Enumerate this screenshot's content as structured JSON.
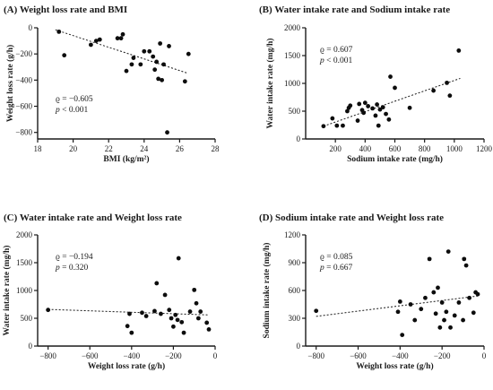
{
  "chart_data": [
    {
      "type": "scatter",
      "title": "(A) Weight loss rate and BMI",
      "xlabel": "BMI (kg/m²)",
      "ylabel": "Weight loss rate (g/h)",
      "xlim": [
        18,
        28
      ],
      "ylim": [
        -850,
        0
      ],
      "xticks": [
        18,
        20,
        22,
        24,
        26,
        28
      ],
      "yticks": [
        -800,
        -600,
        -400,
        -200,
        0
      ],
      "stats": {
        "rho": "ϱ = −0.605",
        "p": "p < 0.001"
      },
      "trendline": {
        "x": [
          19.0,
          26.4
        ],
        "y": [
          -15,
          -345
        ]
      },
      "points": [
        {
          "x": 19.2,
          "y": -30
        },
        {
          "x": 19.5,
          "y": -210
        },
        {
          "x": 21.0,
          "y": -130
        },
        {
          "x": 21.3,
          "y": -100
        },
        {
          "x": 21.5,
          "y": -90
        },
        {
          "x": 22.5,
          "y": -80
        },
        {
          "x": 22.7,
          "y": -80
        },
        {
          "x": 22.8,
          "y": -50
        },
        {
          "x": 23.0,
          "y": -330
        },
        {
          "x": 23.3,
          "y": -280
        },
        {
          "x": 23.4,
          "y": -230
        },
        {
          "x": 23.8,
          "y": -280
        },
        {
          "x": 24.0,
          "y": -180
        },
        {
          "x": 24.3,
          "y": -180
        },
        {
          "x": 24.5,
          "y": -220
        },
        {
          "x": 24.6,
          "y": -320
        },
        {
          "x": 24.7,
          "y": -260
        },
        {
          "x": 24.8,
          "y": -390
        },
        {
          "x": 24.9,
          "y": -120
        },
        {
          "x": 25.0,
          "y": -400
        },
        {
          "x": 25.1,
          "y": -280
        },
        {
          "x": 25.3,
          "y": -800
        },
        {
          "x": 25.4,
          "y": -140
        },
        {
          "x": 26.3,
          "y": -410
        },
        {
          "x": 26.5,
          "y": -200
        }
      ]
    },
    {
      "type": "scatter",
      "title": "(B) Water intake rate and Sodium intake rate",
      "xlabel": "Sodium intake rate (mg/h)",
      "ylabel": "Water intake rate (mg/h)",
      "xlim": [
        0,
        1200
      ],
      "ylim": [
        0,
        2000
      ],
      "xticks": [
        200,
        400,
        600,
        800,
        1000,
        1200
      ],
      "yticks": [
        0,
        500,
        1000,
        1500,
        2000
      ],
      "stats": {
        "rho": "ϱ = 0.607",
        "p": "p < 0.001"
      },
      "trendline": {
        "x": [
          120,
          1040
        ],
        "y": [
          230,
          1090
        ]
      },
      "points": [
        {
          "x": 120,
          "y": 230
        },
        {
          "x": 180,
          "y": 370
        },
        {
          "x": 210,
          "y": 240
        },
        {
          "x": 250,
          "y": 240
        },
        {
          "x": 280,
          "y": 500
        },
        {
          "x": 290,
          "y": 560
        },
        {
          "x": 300,
          "y": 600
        },
        {
          "x": 350,
          "y": 330
        },
        {
          "x": 360,
          "y": 630
        },
        {
          "x": 380,
          "y": 520
        },
        {
          "x": 390,
          "y": 470
        },
        {
          "x": 400,
          "y": 650
        },
        {
          "x": 420,
          "y": 590
        },
        {
          "x": 450,
          "y": 550
        },
        {
          "x": 470,
          "y": 420
        },
        {
          "x": 480,
          "y": 620
        },
        {
          "x": 490,
          "y": 240
        },
        {
          "x": 500,
          "y": 530
        },
        {
          "x": 520,
          "y": 570
        },
        {
          "x": 540,
          "y": 450
        },
        {
          "x": 560,
          "y": 350
        },
        {
          "x": 570,
          "y": 1120
        },
        {
          "x": 600,
          "y": 920
        },
        {
          "x": 700,
          "y": 560
        },
        {
          "x": 860,
          "y": 870
        },
        {
          "x": 950,
          "y": 1010
        },
        {
          "x": 970,
          "y": 780
        },
        {
          "x": 1030,
          "y": 1590
        }
      ]
    },
    {
      "type": "scatter",
      "title": "(C) Water intake rate and Weight loss rate",
      "xlabel": "Weight loss rate (g/h)",
      "ylabel": "Water intake rate (mg/h)",
      "xlim": [
        -850,
        0
      ],
      "ylim": [
        0,
        2000
      ],
      "xticks": [
        -800,
        -600,
        -400,
        -200,
        0
      ],
      "yticks": [
        0,
        500,
        1000,
        1500,
        2000
      ],
      "stats": {
        "rho": "ϱ = −0.194",
        "p": "p = 0.320"
      },
      "trendline": {
        "x": [
          -800,
          -30
        ],
        "y": [
          660,
          560
        ]
      },
      "points": [
        {
          "x": -800,
          "y": 650
        },
        {
          "x": -420,
          "y": 360
        },
        {
          "x": -410,
          "y": 580
        },
        {
          "x": -400,
          "y": 240
        },
        {
          "x": -350,
          "y": 600
        },
        {
          "x": -330,
          "y": 540
        },
        {
          "x": -290,
          "y": 630
        },
        {
          "x": -280,
          "y": 1130
        },
        {
          "x": -260,
          "y": 580
        },
        {
          "x": -240,
          "y": 920
        },
        {
          "x": -220,
          "y": 650
        },
        {
          "x": -210,
          "y": 500
        },
        {
          "x": -200,
          "y": 350
        },
        {
          "x": -190,
          "y": 560
        },
        {
          "x": -180,
          "y": 470
        },
        {
          "x": -175,
          "y": 1580
        },
        {
          "x": -160,
          "y": 430
        },
        {
          "x": -150,
          "y": 240
        },
        {
          "x": -120,
          "y": 620
        },
        {
          "x": -100,
          "y": 1010
        },
        {
          "x": -90,
          "y": 770
        },
        {
          "x": -80,
          "y": 500
        },
        {
          "x": -70,
          "y": 620
        },
        {
          "x": -40,
          "y": 420
        },
        {
          "x": -30,
          "y": 300
        }
      ]
    },
    {
      "type": "scatter",
      "title": "(D) Sodium intake rate and Weight loss rate",
      "xlabel": "Weight loss rate (g/h)",
      "ylabel": "Sodium intake rate (mg/h)",
      "xlim": [
        -850,
        0
      ],
      "ylim": [
        0,
        1200
      ],
      "xticks": [
        -800,
        -600,
        -400,
        -200,
        0
      ],
      "yticks": [
        0,
        300,
        600,
        900,
        1200
      ],
      "stats": {
        "rho": "ϱ = 0.085",
        "p": "p = 0.667"
      },
      "trendline": {
        "x": [
          -800,
          -30
        ],
        "y": [
          320,
          540
        ]
      },
      "points": [
        {
          "x": -800,
          "y": 380
        },
        {
          "x": -410,
          "y": 370
        },
        {
          "x": -400,
          "y": 480
        },
        {
          "x": -390,
          "y": 120
        },
        {
          "x": -350,
          "y": 450
        },
        {
          "x": -330,
          "y": 280
        },
        {
          "x": -300,
          "y": 400
        },
        {
          "x": -280,
          "y": 520
        },
        {
          "x": -260,
          "y": 940
        },
        {
          "x": -240,
          "y": 580
        },
        {
          "x": -230,
          "y": 350
        },
        {
          "x": -220,
          "y": 630
        },
        {
          "x": -210,
          "y": 200
        },
        {
          "x": -200,
          "y": 470
        },
        {
          "x": -190,
          "y": 280
        },
        {
          "x": -180,
          "y": 370
        },
        {
          "x": -170,
          "y": 1020
        },
        {
          "x": -160,
          "y": 200
        },
        {
          "x": -140,
          "y": 330
        },
        {
          "x": -120,
          "y": 470
        },
        {
          "x": -100,
          "y": 280
        },
        {
          "x": -95,
          "y": 940
        },
        {
          "x": -85,
          "y": 870
        },
        {
          "x": -70,
          "y": 520
        },
        {
          "x": -50,
          "y": 360
        },
        {
          "x": -40,
          "y": 580
        },
        {
          "x": -30,
          "y": 560
        }
      ]
    }
  ]
}
